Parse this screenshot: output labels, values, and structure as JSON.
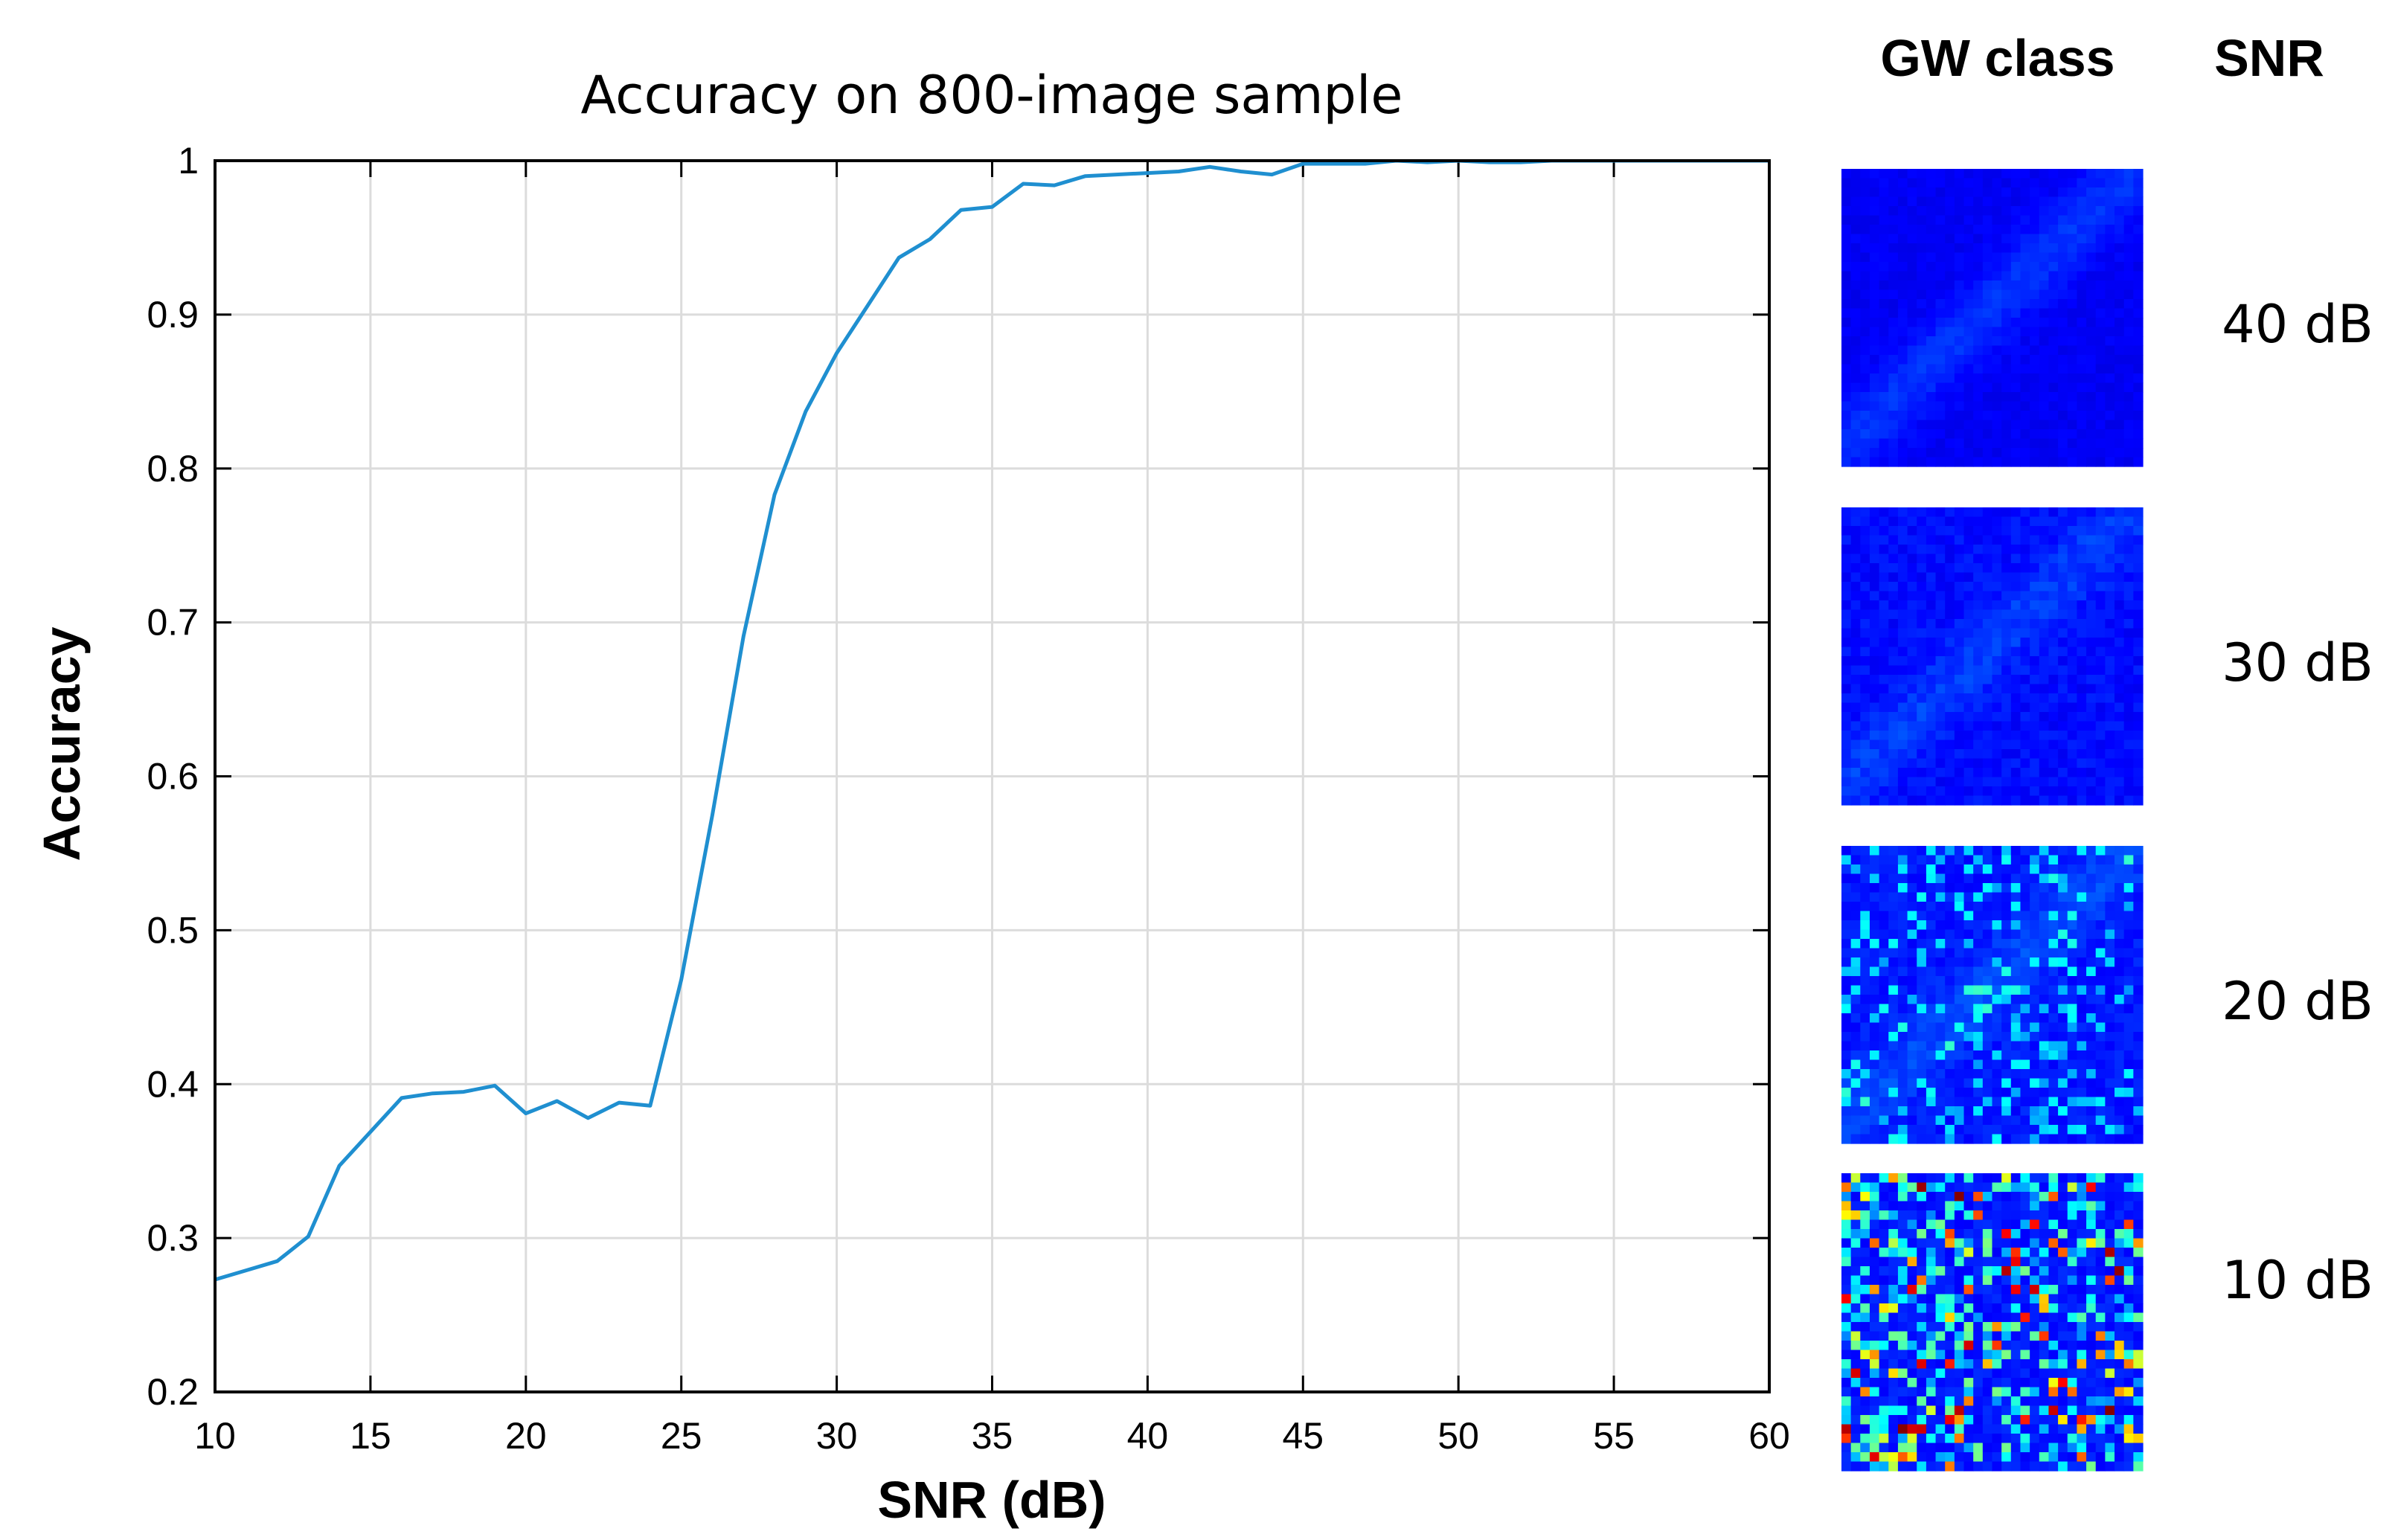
{
  "chart_data": {
    "type": "line",
    "title": "Accuracy on 800-image sample",
    "xlabel": "SNR (dB)",
    "ylabel": "Accuracy",
    "xlim": [
      10,
      60
    ],
    "ylim": [
      0.2,
      1
    ],
    "xticks": [
      10,
      15,
      20,
      25,
      30,
      35,
      40,
      45,
      50,
      55,
      60
    ],
    "yticks": [
      0.2,
      0.3,
      0.4,
      0.5,
      0.6,
      0.7,
      0.8,
      0.9,
      1
    ],
    "ytick_labels": [
      "0.2",
      "0.3",
      "0.4",
      "0.5",
      "0.6",
      "0.7",
      "0.8",
      "0.9",
      "1"
    ],
    "grid": true,
    "colors": {
      "line": "#1f8fd0",
      "grid": "#dcdcdc",
      "axis": "#000000"
    },
    "series": [
      {
        "x": [
          10,
          11,
          12,
          13,
          14,
          15,
          16,
          17,
          18,
          19,
          20,
          21,
          22,
          23,
          24,
          25,
          26,
          27,
          28,
          29,
          30,
          31,
          32,
          33,
          34,
          35,
          36,
          37,
          38,
          39,
          40,
          41,
          42,
          43,
          44,
          45,
          46,
          47,
          48,
          49,
          50,
          51,
          52,
          53,
          54,
          55,
          56,
          57,
          58,
          59,
          60
        ],
        "y": [
          0.273,
          0.279,
          0.285,
          0.301,
          0.347,
          0.369,
          0.391,
          0.394,
          0.395,
          0.399,
          0.381,
          0.389,
          0.378,
          0.388,
          0.386,
          0.468,
          0.575,
          0.691,
          0.783,
          0.837,
          0.875,
          0.906,
          0.937,
          0.949,
          0.968,
          0.97,
          0.985,
          0.984,
          0.99,
          0.991,
          0.992,
          0.993,
          0.996,
          0.993,
          0.991,
          0.998,
          0.998,
          0.998,
          1.0,
          0.999,
          1.0,
          0.999,
          0.999,
          1.0,
          1.0,
          1.0,
          1.0,
          1.0,
          1.0,
          1.0,
          1.0
        ]
      }
    ]
  },
  "side_panel": {
    "column_headers": {
      "class": "GW class",
      "snr": "SNR"
    },
    "samples": [
      {
        "snr_label": "40 dB"
      },
      {
        "snr_label": "30 dB"
      },
      {
        "snr_label": "20 dB"
      },
      {
        "snr_label": "10 dB"
      }
    ]
  }
}
